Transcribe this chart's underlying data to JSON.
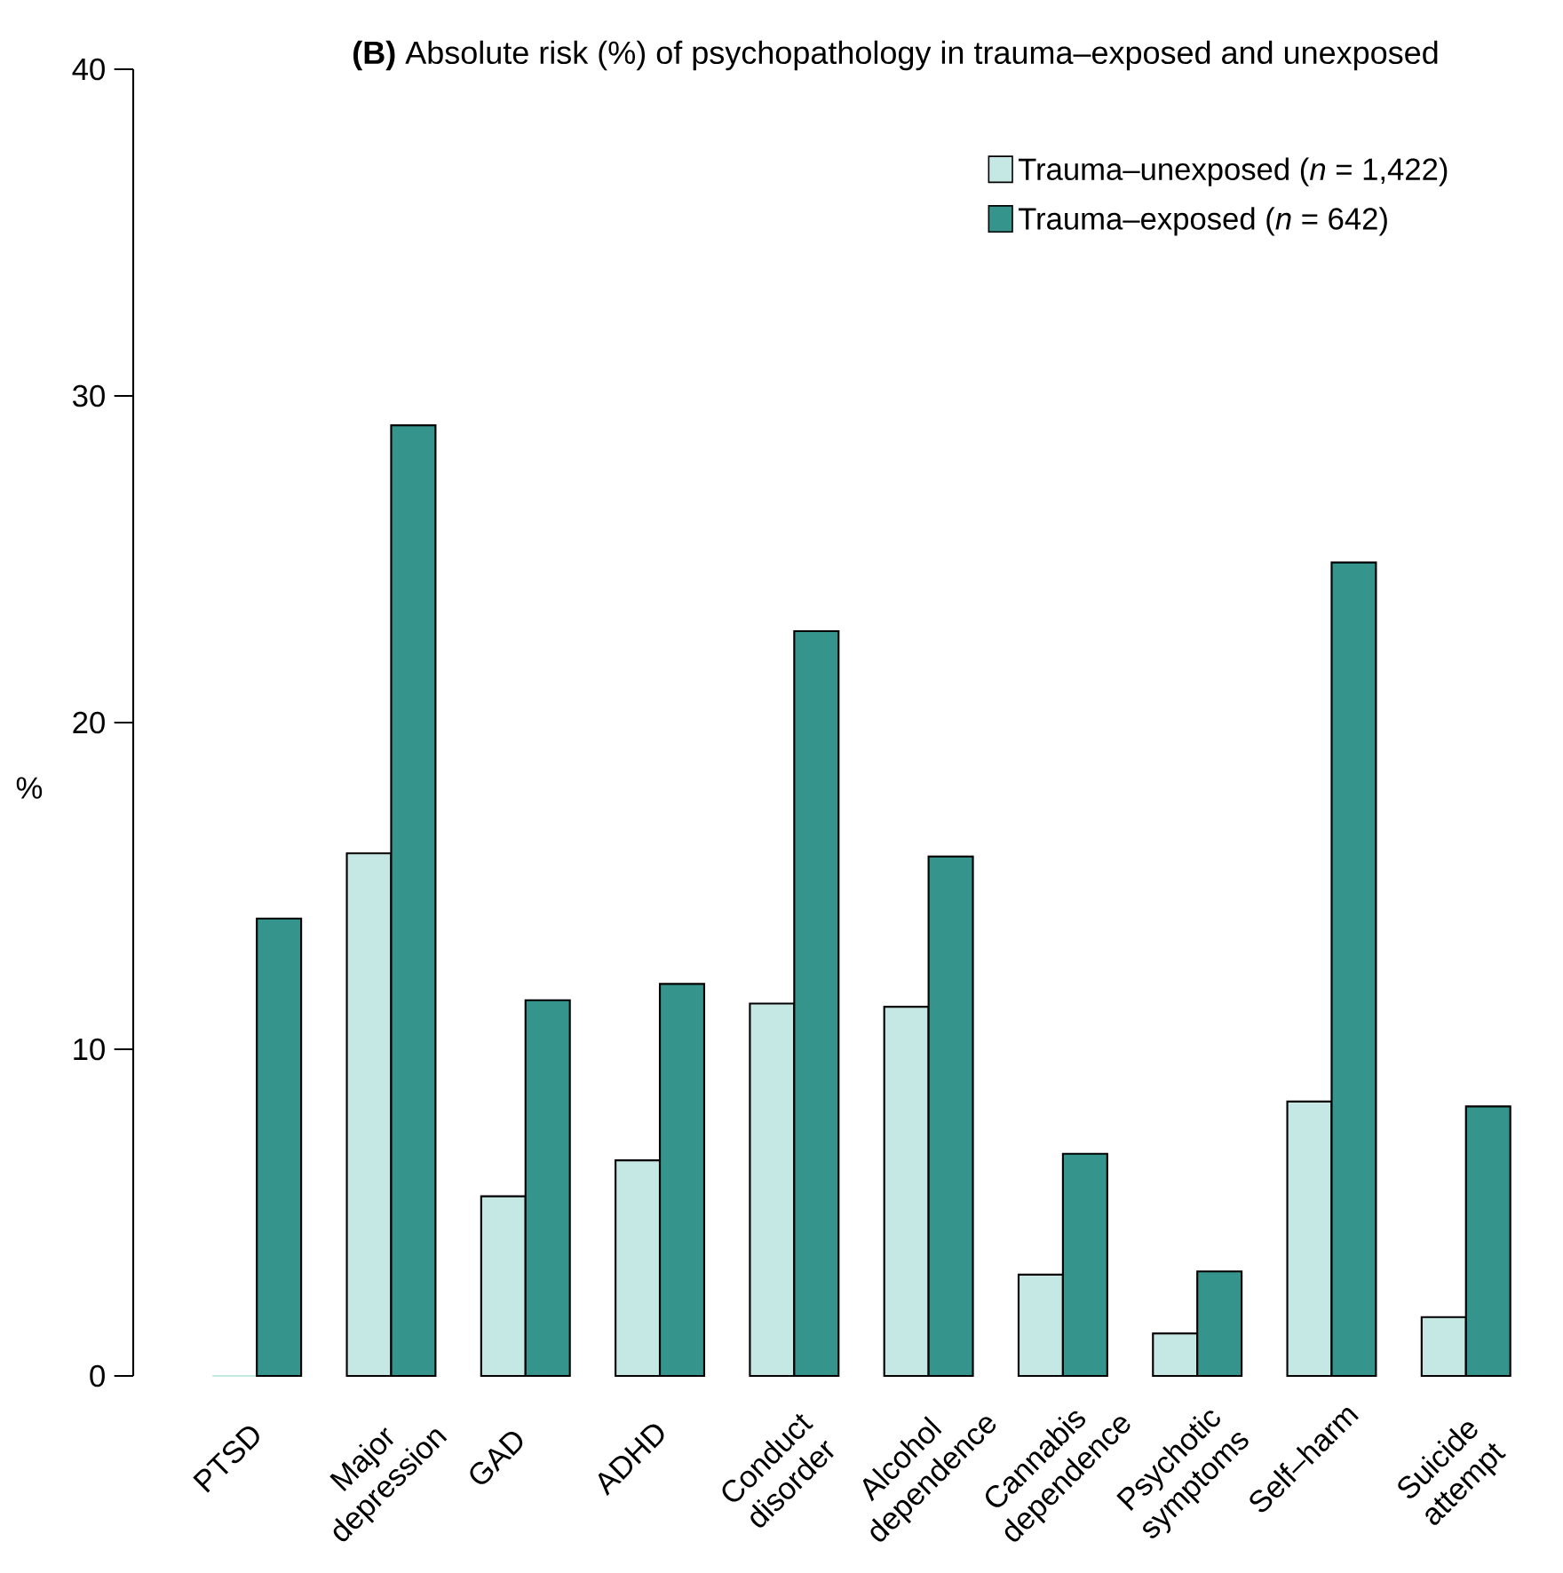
{
  "chart_data": {
    "type": "bar",
    "title": "**(B)** Absolute risk (%) of psychopathology in trauma–exposed and unexposed",
    "ylabel": "%",
    "categories": [
      "PTSD",
      "Major depression",
      "GAD",
      "ADHD",
      "Conduct disorder",
      "Alcohol dependence",
      "Cannabis dependence",
      "Psychotic symptoms",
      "Self–harm",
      "Suicide attempt"
    ],
    "series": [
      {
        "name": "Trauma–unexposed (*n* = 1,422)",
        "color": "#c5e8e4",
        "values": [
          0,
          16.0,
          5.5,
          6.6,
          11.4,
          11.3,
          3.1,
          1.3,
          8.4,
          1.8
        ]
      },
      {
        "name": "Trauma–exposed (*n* = 642)",
        "color": "#35958c",
        "values": [
          14.0,
          29.1,
          11.5,
          12.0,
          22.8,
          15.9,
          6.8,
          3.2,
          24.9,
          8.25
        ]
      }
    ],
    "ylim": [
      0,
      40
    ],
    "yticks": [
      0,
      10,
      20,
      30,
      40
    ],
    "legend": "top right"
  }
}
